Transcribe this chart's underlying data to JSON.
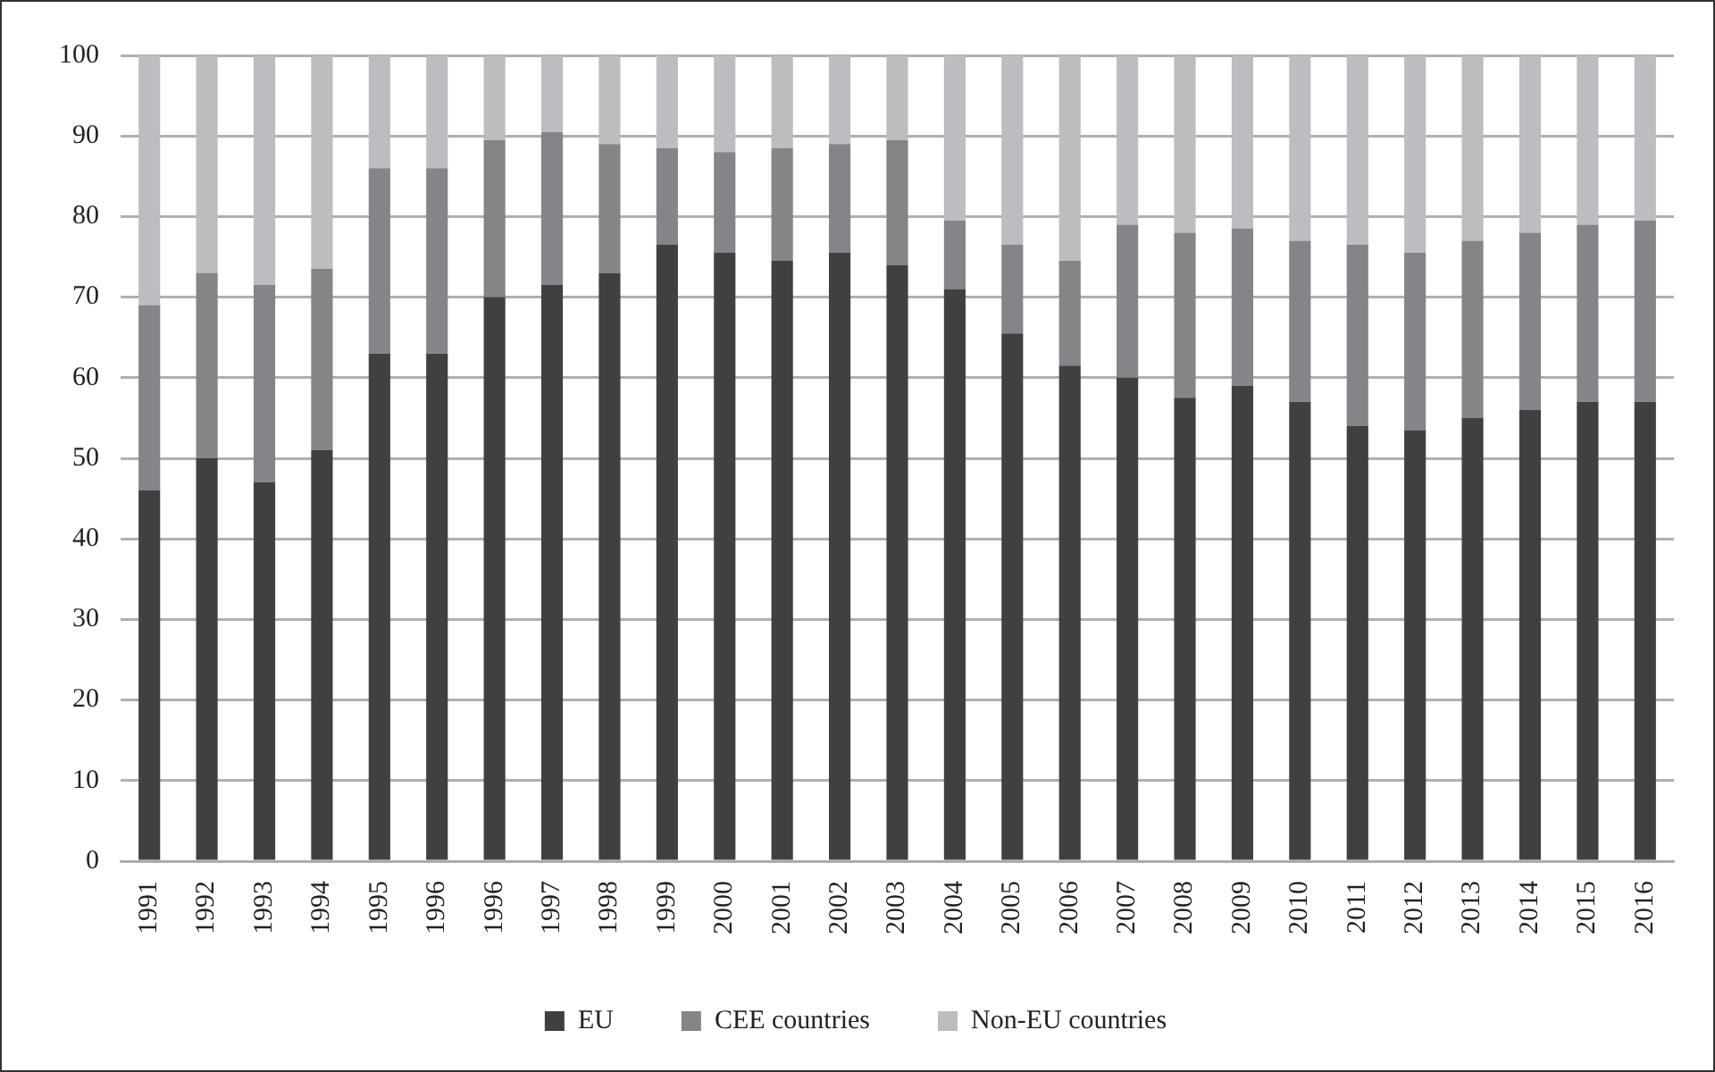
{
  "chart_data": {
    "type": "bar",
    "stacked": true,
    "categories": [
      "1991",
      "1992",
      "1993",
      "1994",
      "1995",
      "1996",
      "1996",
      "1997",
      "1998",
      "1999",
      "2000",
      "2001",
      "2002",
      "2003",
      "2004",
      "2005",
      "2006",
      "2007",
      "2008",
      "2009",
      "2010",
      "2011",
      "2012",
      "2013",
      "2014",
      "2015",
      "2016"
    ],
    "series": [
      {
        "name": "EU",
        "color": "#404040",
        "values": [
          46,
          50,
          47,
          51,
          63,
          63,
          70,
          71.5,
          73,
          76.5,
          75.5,
          74.5,
          75.5,
          74,
          71,
          65.5,
          61.5,
          60,
          57.5,
          59,
          57,
          54,
          53.5,
          55,
          56,
          57,
          57
        ]
      },
      {
        "name": "CEE countries",
        "color": "#848589",
        "values": [
          23,
          23,
          24.5,
          22.5,
          23,
          23,
          19.5,
          19,
          16,
          12,
          12.5,
          14,
          13.5,
          15.5,
          8.5,
          11,
          13,
          19,
          20.5,
          19.5,
          20,
          22.5,
          22,
          22,
          22,
          22,
          22.5
        ]
      },
      {
        "name": "Non-EU countries",
        "color": "#bcbdc1",
        "values": [
          31,
          27,
          28.5,
          26.5,
          14,
          14,
          10.5,
          9.5,
          11,
          11.5,
          12,
          11.5,
          11,
          10.5,
          20.5,
          23.5,
          25.5,
          21,
          22,
          21.5,
          23,
          23.5,
          24.5,
          23,
          22,
          21,
          20.5
        ]
      }
    ],
    "ylim": [
      0,
      100
    ],
    "yticks": [
      0,
      10,
      20,
      30,
      40,
      50,
      60,
      70,
      80,
      90,
      100
    ],
    "grid": "y",
    "legend": "bottom"
  }
}
